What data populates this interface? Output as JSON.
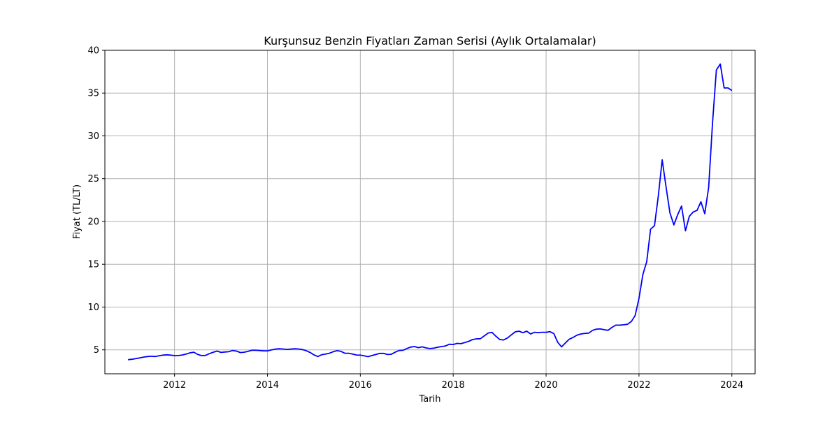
{
  "chart_data": {
    "type": "line",
    "title": "Kurşunsuz Benzin Fiyatları Zaman Serisi (Aylık Ortalamalar)",
    "xlabel": "Tarih",
    "ylabel": "Fiyat (TL/LT)",
    "x_ticks": [
      "2012",
      "2014",
      "2016",
      "2018",
      "2020",
      "2022",
      "2024"
    ],
    "y_ticks": [
      5,
      10,
      15,
      20,
      25,
      30,
      35,
      40
    ],
    "xlim": [
      "2010-07",
      "2024-07"
    ],
    "ylim": [
      2.2,
      40
    ],
    "grid": true,
    "legend": "none",
    "line_color": "#0000ff",
    "series": [
      {
        "points": [
          [
            "2011-01",
            3.85
          ],
          [
            "2011-02",
            3.9
          ],
          [
            "2011-03",
            3.98
          ],
          [
            "2011-04",
            4.05
          ],
          [
            "2011-05",
            4.15
          ],
          [
            "2011-06",
            4.22
          ],
          [
            "2011-07",
            4.25
          ],
          [
            "2011-08",
            4.22
          ],
          [
            "2011-09",
            4.3
          ],
          [
            "2011-10",
            4.38
          ],
          [
            "2011-11",
            4.42
          ],
          [
            "2011-12",
            4.38
          ],
          [
            "2012-01",
            4.32
          ],
          [
            "2012-02",
            4.33
          ],
          [
            "2012-03",
            4.4
          ],
          [
            "2012-04",
            4.5
          ],
          [
            "2012-05",
            4.65
          ],
          [
            "2012-06",
            4.72
          ],
          [
            "2012-07",
            4.45
          ],
          [
            "2012-08",
            4.32
          ],
          [
            "2012-09",
            4.35
          ],
          [
            "2012-10",
            4.55
          ],
          [
            "2012-11",
            4.72
          ],
          [
            "2012-12",
            4.85
          ],
          [
            "2013-01",
            4.7
          ],
          [
            "2013-02",
            4.75
          ],
          [
            "2013-03",
            4.78
          ],
          [
            "2013-04",
            4.92
          ],
          [
            "2013-05",
            4.85
          ],
          [
            "2013-06",
            4.68
          ],
          [
            "2013-07",
            4.72
          ],
          [
            "2013-08",
            4.82
          ],
          [
            "2013-09",
            4.95
          ],
          [
            "2013-10",
            4.95
          ],
          [
            "2013-11",
            4.92
          ],
          [
            "2013-12",
            4.88
          ],
          [
            "2014-01",
            4.88
          ],
          [
            "2014-02",
            4.98
          ],
          [
            "2014-03",
            5.08
          ],
          [
            "2014-04",
            5.12
          ],
          [
            "2014-05",
            5.1
          ],
          [
            "2014-06",
            5.05
          ],
          [
            "2014-07",
            5.08
          ],
          [
            "2014-08",
            5.12
          ],
          [
            "2014-09",
            5.1
          ],
          [
            "2014-10",
            5.03
          ],
          [
            "2014-11",
            4.9
          ],
          [
            "2014-12",
            4.7
          ],
          [
            "2015-01",
            4.42
          ],
          [
            "2015-02",
            4.22
          ],
          [
            "2015-03",
            4.42
          ],
          [
            "2015-04",
            4.5
          ],
          [
            "2015-05",
            4.6
          ],
          [
            "2015-06",
            4.78
          ],
          [
            "2015-07",
            4.9
          ],
          [
            "2015-08",
            4.82
          ],
          [
            "2015-09",
            4.6
          ],
          [
            "2015-10",
            4.6
          ],
          [
            "2015-11",
            4.5
          ],
          [
            "2015-12",
            4.4
          ],
          [
            "2016-01",
            4.38
          ],
          [
            "2016-02",
            4.3
          ],
          [
            "2016-03",
            4.2
          ],
          [
            "2016-04",
            4.33
          ],
          [
            "2016-05",
            4.45
          ],
          [
            "2016-06",
            4.58
          ],
          [
            "2016-07",
            4.58
          ],
          [
            "2016-08",
            4.45
          ],
          [
            "2016-09",
            4.48
          ],
          [
            "2016-10",
            4.72
          ],
          [
            "2016-11",
            4.92
          ],
          [
            "2016-12",
            4.95
          ],
          [
            "2017-01",
            5.15
          ],
          [
            "2017-02",
            5.32
          ],
          [
            "2017-03",
            5.38
          ],
          [
            "2017-04",
            5.25
          ],
          [
            "2017-05",
            5.35
          ],
          [
            "2017-06",
            5.22
          ],
          [
            "2017-07",
            5.15
          ],
          [
            "2017-08",
            5.2
          ],
          [
            "2017-09",
            5.3
          ],
          [
            "2017-10",
            5.38
          ],
          [
            "2017-11",
            5.45
          ],
          [
            "2017-12",
            5.65
          ],
          [
            "2018-01",
            5.62
          ],
          [
            "2018-02",
            5.75
          ],
          [
            "2018-03",
            5.72
          ],
          [
            "2018-04",
            5.85
          ],
          [
            "2018-05",
            6.0
          ],
          [
            "2018-06",
            6.2
          ],
          [
            "2018-07",
            6.28
          ],
          [
            "2018-08",
            6.3
          ],
          [
            "2018-09",
            6.62
          ],
          [
            "2018-10",
            6.95
          ],
          [
            "2018-11",
            7.05
          ],
          [
            "2018-12",
            6.6
          ],
          [
            "2019-01",
            6.22
          ],
          [
            "2019-02",
            6.15
          ],
          [
            "2019-03",
            6.38
          ],
          [
            "2019-04",
            6.75
          ],
          [
            "2019-05",
            7.1
          ],
          [
            "2019-06",
            7.18
          ],
          [
            "2019-07",
            7.0
          ],
          [
            "2019-08",
            7.18
          ],
          [
            "2019-09",
            6.85
          ],
          [
            "2019-10",
            7.05
          ],
          [
            "2019-11",
            7.02
          ],
          [
            "2019-12",
            7.05
          ],
          [
            "2020-01",
            7.05
          ],
          [
            "2020-02",
            7.12
          ],
          [
            "2020-03",
            6.9
          ],
          [
            "2020-04",
            5.88
          ],
          [
            "2020-05",
            5.35
          ],
          [
            "2020-06",
            5.82
          ],
          [
            "2020-07",
            6.25
          ],
          [
            "2020-08",
            6.45
          ],
          [
            "2020-09",
            6.72
          ],
          [
            "2020-10",
            6.85
          ],
          [
            "2020-11",
            6.92
          ],
          [
            "2020-12",
            6.95
          ],
          [
            "2021-01",
            7.28
          ],
          [
            "2021-02",
            7.42
          ],
          [
            "2021-03",
            7.45
          ],
          [
            "2021-04",
            7.35
          ],
          [
            "2021-05",
            7.28
          ],
          [
            "2021-06",
            7.62
          ],
          [
            "2021-07",
            7.88
          ],
          [
            "2021-08",
            7.88
          ],
          [
            "2021-09",
            7.92
          ],
          [
            "2021-10",
            7.98
          ],
          [
            "2021-11",
            8.3
          ],
          [
            "2021-12",
            9.0
          ],
          [
            "2022-01",
            11.0
          ],
          [
            "2022-02",
            13.8
          ],
          [
            "2022-03",
            15.3
          ],
          [
            "2022-04",
            19.1
          ],
          [
            "2022-05",
            19.5
          ],
          [
            "2022-06",
            23.0
          ],
          [
            "2022-07",
            27.2
          ],
          [
            "2022-08",
            24.0
          ],
          [
            "2022-09",
            21.0
          ],
          [
            "2022-10",
            19.6
          ],
          [
            "2022-11",
            20.8
          ],
          [
            "2022-12",
            21.8
          ],
          [
            "2023-01",
            18.9
          ],
          [
            "2023-02",
            20.6
          ],
          [
            "2023-03",
            21.1
          ],
          [
            "2023-04",
            21.3
          ],
          [
            "2023-05",
            22.3
          ],
          [
            "2023-06",
            20.9
          ],
          [
            "2023-07",
            24.0
          ],
          [
            "2023-08",
            31.5
          ],
          [
            "2023-09",
            37.7
          ],
          [
            "2023-10",
            38.4
          ],
          [
            "2023-11",
            35.6
          ],
          [
            "2023-12",
            35.6
          ],
          [
            "2024-01",
            35.3
          ]
        ]
      }
    ]
  }
}
